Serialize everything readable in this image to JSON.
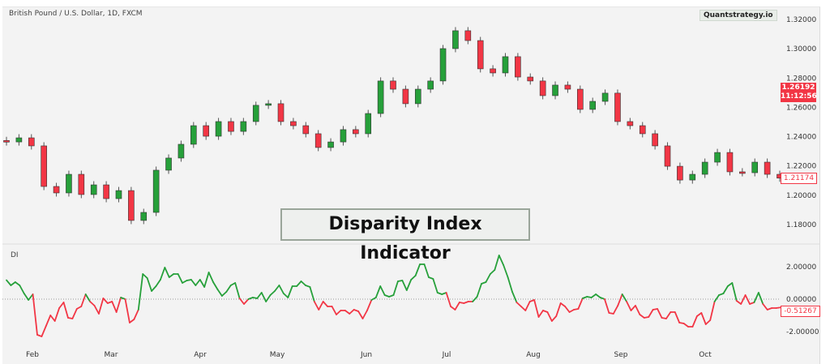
{
  "header": {
    "symbol": "British Pound / U.S. Dollar, 1D, FXCM",
    "brand": "Quantstrategy.io",
    "overlay_title": "Disparity Index Indicator"
  },
  "colors": {
    "up": "#26a03a",
    "down": "#f23645",
    "background": "#f3f3f3"
  },
  "chart_data": [
    {
      "type": "candlestick",
      "title": "British Pound / U.S. Dollar, 1D, FXCM",
      "ylim": [
        1.17,
        1.325
      ],
      "y_ticks": [
        "1.32000",
        "1.30000",
        "1.28000",
        "1.26000",
        "1.24000",
        "1.22000",
        "1.20000",
        "1.18000"
      ],
      "y_tick_values": [
        1.32,
        1.3,
        1.28,
        1.26,
        1.24,
        1.22,
        1.2,
        1.18
      ],
      "x_ticks": [
        "Feb",
        "Mar",
        "Apr",
        "May",
        "Jun",
        "Jul",
        "Aug",
        "Sep",
        "Oct"
      ],
      "closes": [
        1.2364,
        1.2392,
        1.2337,
        1.206,
        1.2016,
        1.2143,
        1.2005,
        1.2071,
        1.1977,
        1.2032,
        1.1828,
        1.1883,
        1.2171,
        1.2254,
        1.2348,
        1.2475,
        1.2403,
        1.2503,
        1.2436,
        1.2503,
        1.2614,
        1.2625,
        1.2503,
        1.2475,
        1.242,
        1.2326,
        1.2364,
        1.2448,
        1.242,
        1.2558,
        1.278,
        1.2724,
        1.2625,
        1.2724,
        1.278,
        1.3001,
        1.3123,
        1.3056,
        1.2863,
        1.2835,
        1.2946,
        1.2807,
        1.278,
        1.268,
        1.2752,
        1.2724,
        1.2586,
        1.2641,
        1.2697,
        1.2503,
        1.2475,
        1.242,
        1.2337,
        1.2198,
        1.2104,
        1.2143,
        1.2226,
        1.2292,
        1.216,
        1.2154,
        1.2226,
        1.2143,
        1.2117
      ],
      "last_price_label": {
        "price": "1.26192",
        "countdown": "11:12:56"
      },
      "close_label": "1.21174",
      "grid": false
    },
    {
      "type": "line",
      "name": "DI",
      "ylim": [
        -3,
        3
      ],
      "y_ticks": [
        "2.00000",
        "0.00000",
        "-2.00000"
      ],
      "y_tick_values": [
        2,
        0,
        -2
      ],
      "zero_line": true,
      "values": [
        1.17,
        0.85,
        1.05,
        0.85,
        0.35,
        -0.05,
        0.3,
        -2.2,
        -2.3,
        -1.65,
        -1.0,
        -1.35,
        -0.55,
        -0.2,
        -1.15,
        -1.2,
        -0.6,
        -0.45,
        0.3,
        -0.15,
        -0.4,
        -0.9,
        0.05,
        -0.25,
        -0.15,
        -0.8,
        0.1,
        0,
        -1.45,
        -1.25,
        -0.65,
        1.55,
        1.3,
        0.5,
        0.8,
        1.2,
        1.95,
        1.35,
        1.55,
        1.55,
        1.0,
        1.15,
        1.2,
        0.85,
        1.2,
        0.75,
        1.65,
        1.05,
        0.6,
        0.2,
        0.45,
        0.85,
        1.0,
        0.05,
        -0.3,
        0,
        0.1,
        0.05,
        0.4,
        -0.15,
        0.25,
        0.5,
        0.85,
        0.35,
        0.1,
        0.8,
        0.8,
        1.1,
        0.85,
        0.75,
        -0.15,
        -0.65,
        -0.15,
        -0.45,
        -0.45,
        -0.95,
        -0.7,
        -0.7,
        -0.9,
        -0.65,
        -0.75,
        -1.2,
        -0.7,
        -0.05,
        0.1,
        0.8,
        0.25,
        0.15,
        0.25,
        1.1,
        1.15,
        0.55,
        1.2,
        1.45,
        2.15,
        2.15,
        1.35,
        1.25,
        0.4,
        0.3,
        0.4,
        -0.45,
        -0.65,
        -0.2,
        -0.25,
        -0.15,
        -0.15,
        0.15,
        0.95,
        1.05,
        1.55,
        1.8,
        2.7,
        2.1,
        1.35,
        0.45,
        -0.2,
        -0.45,
        -0.7,
        -0.15,
        -0.05,
        -1.1,
        -0.7,
        -0.8,
        -1.35,
        -1.05,
        -0.25,
        -0.45,
        -0.8,
        -0.65,
        -0.6,
        0.05,
        0.15,
        0.1,
        0.3,
        0.1,
        0,
        -0.85,
        -0.9,
        -0.4,
        0.3,
        -0.15,
        -0.7,
        -0.4,
        -0.95,
        -1.15,
        -1.1,
        -0.65,
        -0.6,
        -1.15,
        -1.2,
        -0.8,
        -0.8,
        -1.45,
        -1.5,
        -1.7,
        -1.7,
        -1.05,
        -0.85,
        -1.55,
        -1.3,
        -0.15,
        0.25,
        0.35,
        0.8,
        1.0,
        -0.1,
        -0.3,
        0.25,
        -0.3,
        -0.2,
        0.4,
        -0.3,
        -0.65,
        -0.55,
        -0.55,
        -0.51267
      ],
      "current_label": "-0.51267"
    }
  ]
}
